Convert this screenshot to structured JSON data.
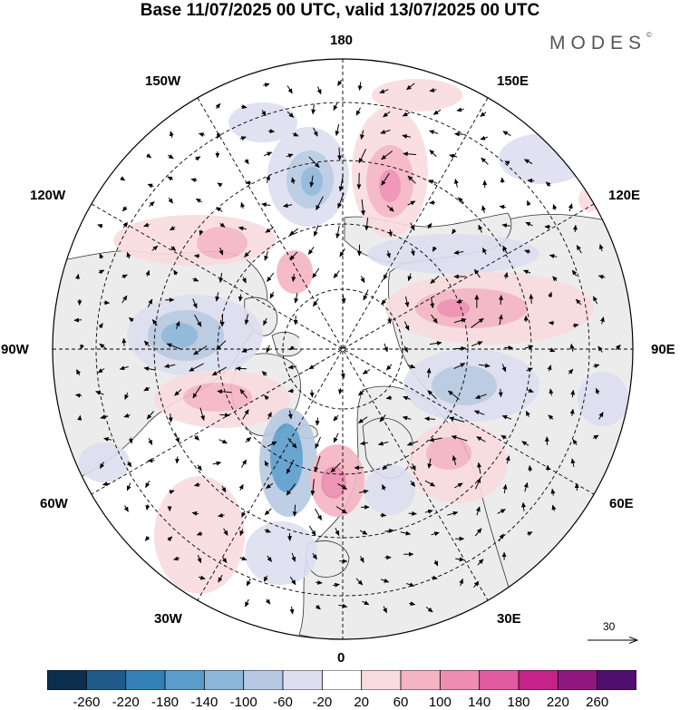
{
  "header": {
    "title": "Base 11/07/2025 00 UTC, valid 13/07/2025 00 UTC",
    "brand": "MODES",
    "brand_mark": "©"
  },
  "map": {
    "projection": "north-polar-stereographic",
    "longitude_labels": {
      "top": "180",
      "bottom": "0",
      "left": "90W",
      "right": "90E",
      "upper_left_1": "150W",
      "upper_left_2": "120W",
      "lower_left_1": "60W",
      "lower_left_2": "30W",
      "upper_right_1": "150E",
      "upper_right_2": "120E",
      "lower_right_1": "60E",
      "lower_right_2": "30E"
    },
    "reference_vector_value": "30"
  },
  "colorbar": {
    "colors": [
      "#0d2e4d",
      "#1f5a8a",
      "#3380b8",
      "#5a9ccb",
      "#8bb6d8",
      "#b7c9e2",
      "#dddef0",
      "#ffffff",
      "#f9dcdf",
      "#f4b4c3",
      "#ef8db0",
      "#e25a9f",
      "#c7228a",
      "#901780",
      "#4e0f6e"
    ],
    "tick_labels": [
      "-260",
      "-220",
      "-180",
      "-140",
      "-100",
      "-60",
      "-20",
      "20",
      "60",
      "100",
      "140",
      "180",
      "220",
      "260"
    ]
  }
}
